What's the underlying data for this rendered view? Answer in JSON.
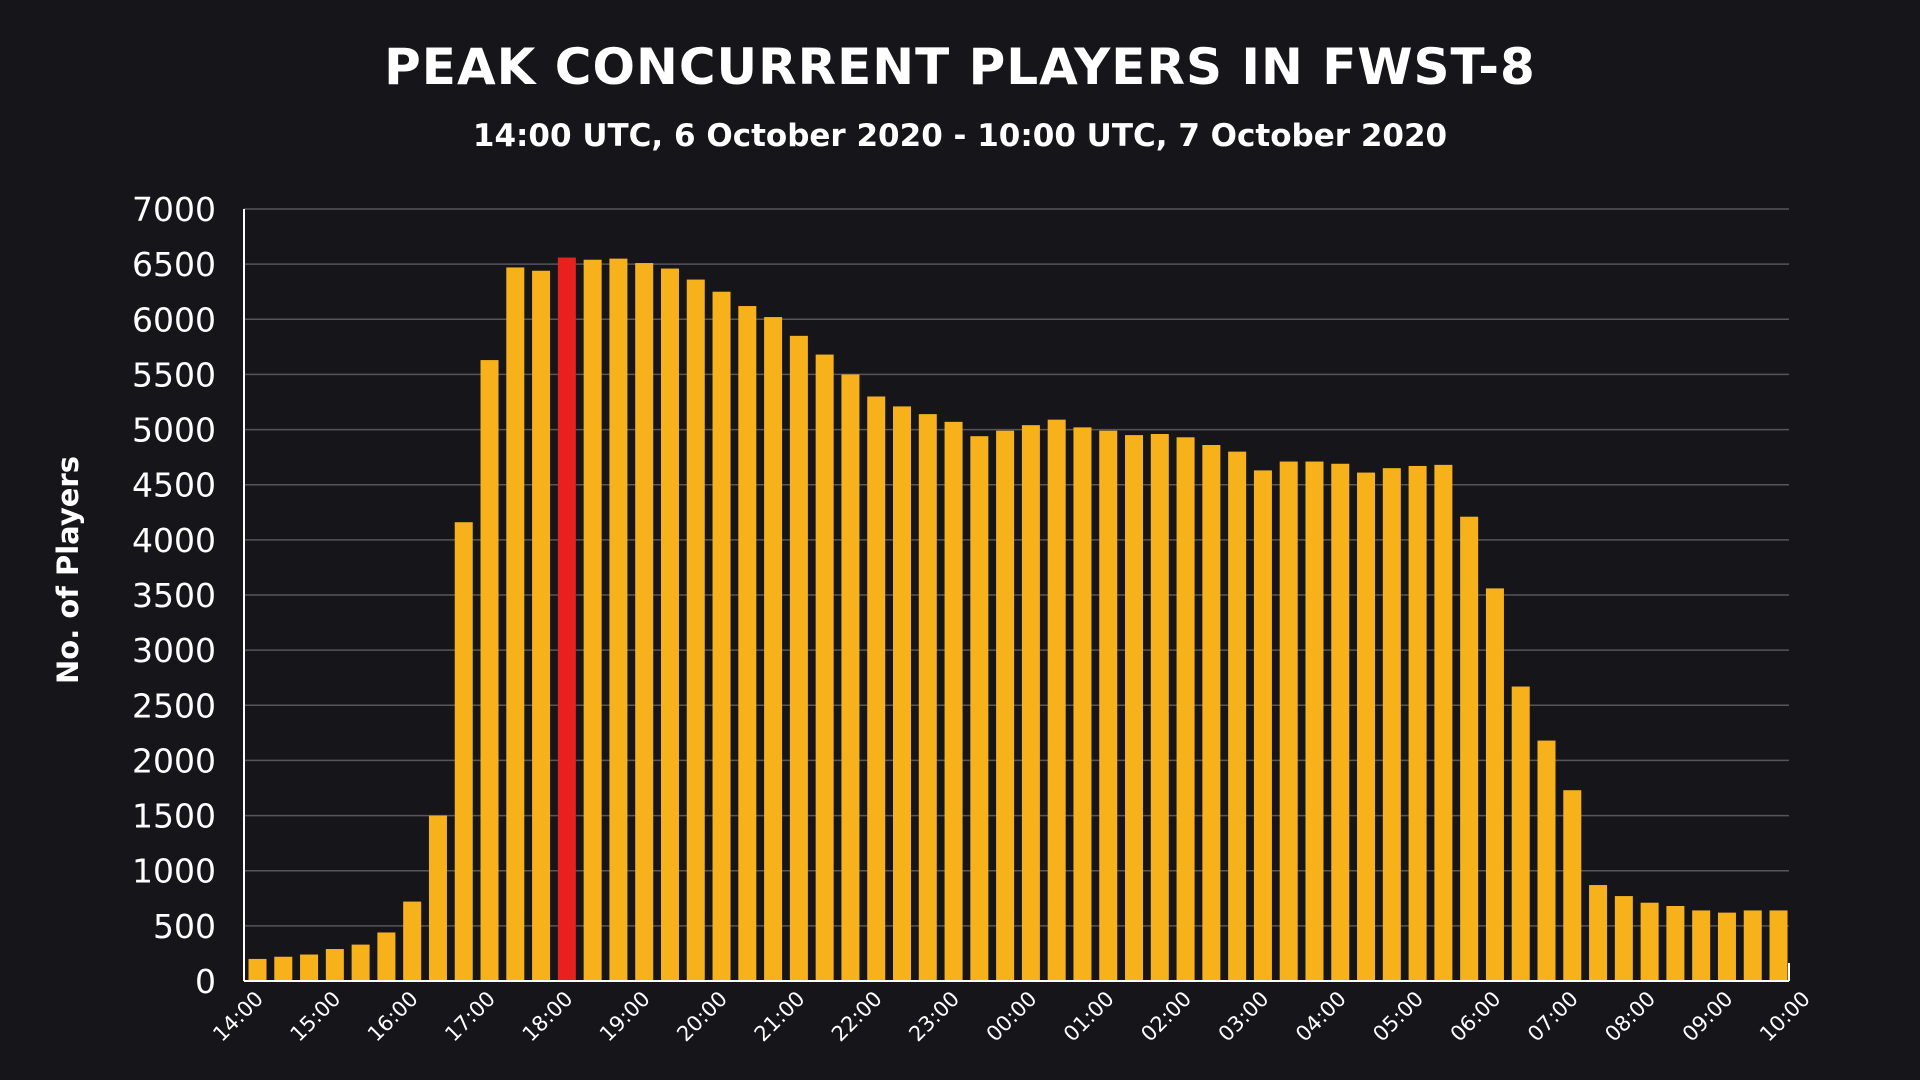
{
  "chart_data": {
    "type": "bar",
    "title": "PEAK CONCURRENT PLAYERS IN FWST-8",
    "subtitle": "14:00 UTC, 6 October 2020 - 10:00 UTC, 7 October 2020",
    "xlabel": "",
    "ylabel": "No. of Players",
    "ylim": [
      0,
      7000
    ],
    "yticks": [
      "0",
      "500",
      "1000",
      "1500",
      "2000",
      "2500",
      "3000",
      "3500",
      "4000",
      "4500",
      "5000",
      "5500",
      "6000",
      "6500",
      "7000"
    ],
    "xtick_labels": [
      "14:00",
      "15:00",
      "16:00",
      "17:00",
      "18:00",
      "19:00",
      "20:00",
      "21:00",
      "22:00",
      "23:00",
      "00:00",
      "01:00",
      "02:00",
      "03:00",
      "04:00",
      "05:00",
      "06:00",
      "07:00",
      "08:00",
      "09:00",
      "10:00"
    ],
    "grid": true,
    "bar_color": "#f7b21b",
    "highlight_color": "#e8211f",
    "highlight_index": 12,
    "values": [
      200,
      220,
      240,
      290,
      330,
      440,
      720,
      1500,
      4160,
      5630,
      6470,
      6440,
      6560,
      6540,
      6550,
      6510,
      6460,
      6360,
      6250,
      6120,
      6020,
      5850,
      5680,
      5500,
      5300,
      5210,
      5140,
      5070,
      4940,
      4990,
      5040,
      5090,
      5020,
      4990,
      4950,
      4960,
      4930,
      4860,
      4800,
      4630,
      4710,
      4710,
      4690,
      4610,
      4650,
      4670,
      4680,
      4210,
      3560,
      2670,
      2180,
      1730,
      870,
      770,
      710,
      680,
      640,
      620,
      640,
      640
    ]
  }
}
